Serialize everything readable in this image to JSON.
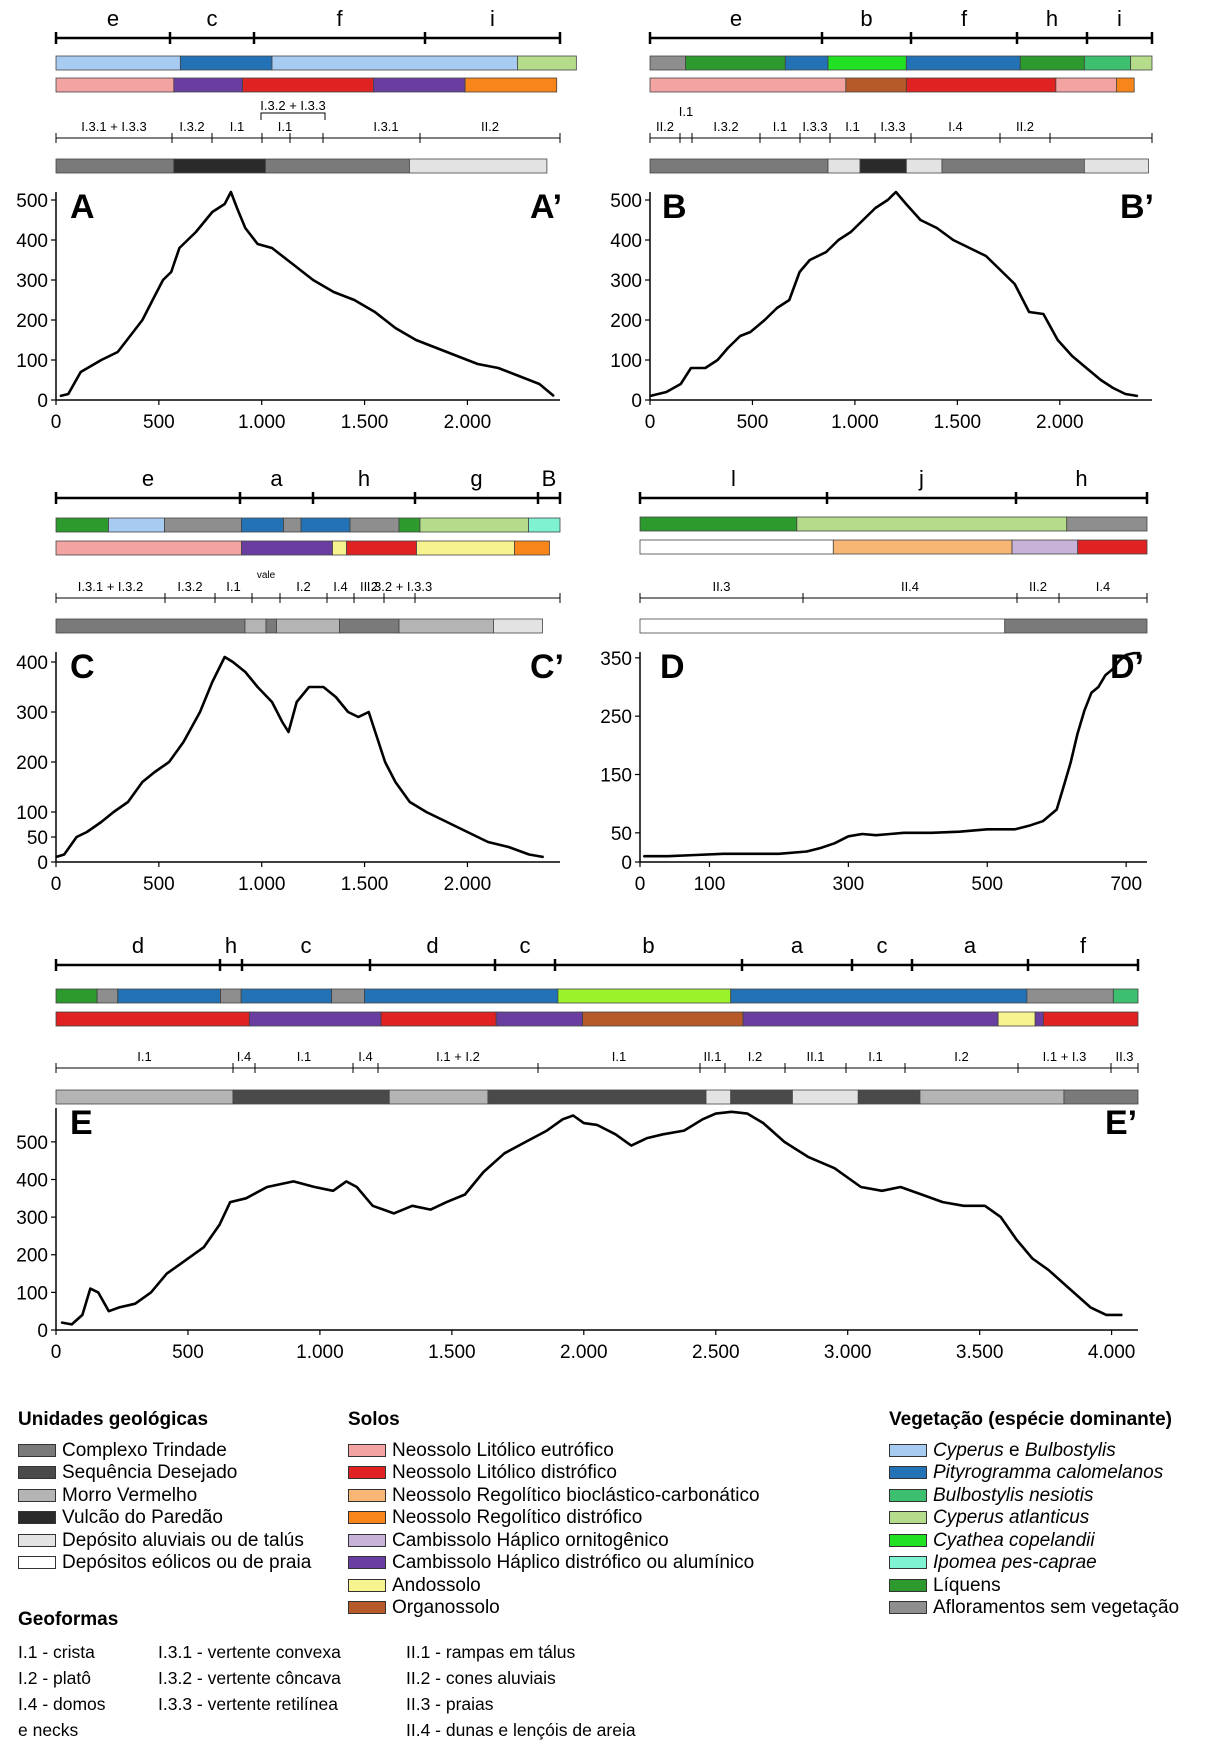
{
  "panels": [
    {
      "id": "A",
      "veg_line": [
        "e",
        "c",
        "f",
        "i"
      ],
      "geoform_labels": [
        "I.3.1 + I.3.3",
        "I.3.2",
        "I.1",
        "I.3.2 + I.3.3",
        "I.1",
        "I.3.1",
        "II.2"
      ],
      "profile_letter": "A",
      "profile_letter_end": "A’",
      "chart_data": {
        "type": "line",
        "x_ticks": [
          "0",
          "500",
          "1.000",
          "1.500",
          "2.000"
        ],
        "y_ticks": [
          "0",
          "100",
          "200",
          "300",
          "400",
          "500"
        ],
        "xlim": [
          0,
          2450
        ],
        "ylim": [
          0,
          520
        ],
        "x": [
          20,
          60,
          120,
          220,
          300,
          360,
          420,
          480,
          520,
          560,
          600,
          680,
          760,
          820,
          850,
          880,
          920,
          980,
          1050,
          1150,
          1250,
          1350,
          1450,
          1550,
          1650,
          1750,
          1850,
          1950,
          2050,
          2150,
          2250,
          2350,
          2420
        ],
        "y": [
          10,
          15,
          70,
          100,
          120,
          160,
          200,
          260,
          300,
          320,
          380,
          420,
          470,
          490,
          520,
          480,
          430,
          390,
          380,
          340,
          300,
          270,
          250,
          220,
          180,
          150,
          130,
          110,
          90,
          80,
          60,
          40,
          10
        ]
      }
    },
    {
      "id": "B",
      "veg_line": [
        "e",
        "b",
        "f",
        "h",
        "i"
      ],
      "geoform_labels": [
        "II.2",
        "I.1",
        "I.3.2",
        "I.1",
        "I.3.3",
        "I.1",
        "I.3.3",
        "I.4",
        "II.2"
      ],
      "profile_letter": "B",
      "profile_letter_end": "B’",
      "chart_data": {
        "type": "line",
        "x_ticks": [
          "0",
          "500",
          "1.000",
          "1.500",
          "2.000"
        ],
        "y_ticks": [
          "0",
          "100",
          "200",
          "300",
          "400",
          "500"
        ],
        "xlim": [
          0,
          2450
        ],
        "ylim": [
          0,
          520
        ],
        "x": [
          0,
          80,
          150,
          200,
          270,
          330,
          380,
          440,
          490,
          560,
          620,
          680,
          730,
          780,
          820,
          860,
          920,
          980,
          1040,
          1100,
          1160,
          1200,
          1250,
          1320,
          1400,
          1480,
          1560,
          1640,
          1720,
          1780,
          1850,
          1920,
          1990,
          2060,
          2130,
          2200,
          2260,
          2320,
          2380
        ],
        "y": [
          10,
          20,
          40,
          80,
          80,
          100,
          130,
          160,
          170,
          200,
          230,
          250,
          320,
          350,
          360,
          370,
          400,
          420,
          450,
          480,
          500,
          520,
          490,
          450,
          430,
          400,
          380,
          360,
          320,
          290,
          220,
          215,
          150,
          110,
          80,
          50,
          30,
          15,
          10
        ]
      }
    },
    {
      "id": "C",
      "veg_line": [
        "e",
        "a",
        "h",
        "g",
        "B"
      ],
      "geoform_labels": [
        "I.3.1 + I.3.2",
        "I.3.2",
        "I.1",
        "vale",
        "I.2",
        "I.4",
        "II.2",
        "I.3.2 + I.3.3"
      ],
      "profile_letter": "C",
      "profile_letter_end": "C’",
      "chart_data": {
        "type": "line",
        "x_ticks": [
          "0",
          "500",
          "1.000",
          "1.500",
          "2.000"
        ],
        "y_ticks": [
          "0",
          "50",
          "100",
          "200",
          "300",
          "400"
        ],
        "xlim": [
          0,
          2450
        ],
        "ylim": [
          0,
          420
        ],
        "x": [
          0,
          40,
          100,
          150,
          220,
          280,
          350,
          420,
          480,
          550,
          620,
          700,
          760,
          820,
          860,
          920,
          980,
          1050,
          1100,
          1130,
          1170,
          1230,
          1300,
          1360,
          1420,
          1470,
          1520,
          1560,
          1600,
          1650,
          1720,
          1800,
          1900,
          2000,
          2100,
          2200,
          2300,
          2370
        ],
        "y": [
          10,
          15,
          50,
          60,
          80,
          100,
          120,
          160,
          180,
          200,
          240,
          300,
          360,
          410,
          400,
          380,
          350,
          320,
          280,
          260,
          320,
          350,
          350,
          330,
          300,
          290,
          300,
          250,
          200,
          160,
          120,
          100,
          80,
          60,
          40,
          30,
          15,
          10
        ]
      }
    },
    {
      "id": "D",
      "veg_line": [
        "l",
        "j",
        "h"
      ],
      "geoform_labels": [
        "II.3",
        "II.4",
        "II.2",
        "I.4"
      ],
      "profile_letter": "D",
      "profile_letter_end": "D’",
      "chart_data": {
        "type": "line",
        "x_ticks": [
          "0",
          "100",
          "300",
          "500",
          "700"
        ],
        "y_ticks": [
          "0",
          "50",
          "150",
          "250",
          "350"
        ],
        "xlim": [
          0,
          730
        ],
        "ylim": [
          0,
          360
        ],
        "x": [
          5,
          40,
          80,
          120,
          160,
          200,
          240,
          260,
          280,
          300,
          320,
          340,
          360,
          380,
          420,
          460,
          500,
          540,
          560,
          580,
          600,
          610,
          620,
          630,
          640,
          650,
          660,
          670,
          680,
          690,
          700,
          710,
          720
        ],
        "y": [
          10,
          10,
          12,
          14,
          14,
          14,
          18,
          24,
          32,
          44,
          48,
          46,
          48,
          50,
          50,
          52,
          56,
          56,
          62,
          70,
          90,
          130,
          170,
          220,
          260,
          290,
          300,
          320,
          330,
          345,
          355,
          358,
          358
        ]
      }
    },
    {
      "id": "E",
      "veg_line": [
        "d",
        "h",
        "c",
        "d",
        "c",
        "b",
        "a",
        "c",
        "a",
        "f"
      ],
      "geoform_labels": [
        "I.1",
        "I.4",
        "I.1",
        "I.4",
        "I.1 + I.2",
        "I.1",
        "II.1",
        "I.2",
        "II.1",
        "I.1",
        "I.2",
        "I.1 + I.3",
        "II.3"
      ],
      "profile_letter": "E",
      "profile_letter_end": "E’",
      "chart_data": {
        "type": "line",
        "x_ticks": [
          "0",
          "500",
          "1.000",
          "1.500",
          "2.000",
          "2.500",
          "3.000",
          "3.500",
          "4.000"
        ],
        "y_ticks": [
          "0",
          "100",
          "200",
          "300",
          "400",
          "500"
        ],
        "xlim": [
          0,
          4100
        ],
        "ylim": [
          0,
          590
        ],
        "x": [
          20,
          60,
          100,
          130,
          160,
          200,
          240,
          300,
          360,
          420,
          480,
          560,
          620,
          660,
          720,
          800,
          900,
          980,
          1050,
          1100,
          1140,
          1200,
          1280,
          1350,
          1420,
          1480,
          1550,
          1620,
          1700,
          1780,
          1860,
          1920,
          1960,
          2000,
          2050,
          2120,
          2180,
          2240,
          2300,
          2380,
          2450,
          2500,
          2560,
          2620,
          2680,
          2760,
          2850,
          2950,
          3050,
          3130,
          3200,
          3280,
          3360,
          3440,
          3520,
          3580,
          3640,
          3700,
          3760,
          3840,
          3920,
          3980,
          4040
        ],
        "y": [
          20,
          15,
          40,
          110,
          100,
          50,
          60,
          70,
          100,
          150,
          180,
          220,
          280,
          340,
          350,
          380,
          395,
          380,
          370,
          395,
          380,
          330,
          310,
          330,
          320,
          340,
          360,
          420,
          470,
          500,
          530,
          560,
          570,
          550,
          545,
          520,
          490,
          510,
          520,
          530,
          560,
          575,
          580,
          575,
          550,
          500,
          460,
          430,
          380,
          370,
          380,
          360,
          340,
          330,
          330,
          300,
          240,
          190,
          160,
          110,
          60,
          40,
          40
        ]
      }
    }
  ],
  "legend_geol": {
    "title": "Unidades geológicas",
    "items": [
      {
        "label": "Complexo Trindade",
        "color": "#7a7a7a"
      },
      {
        "label": "Sequência Desejado",
        "color": "#4a4a4a"
      },
      {
        "label": "Morro Vermelho",
        "color": "#b4b4b4"
      },
      {
        "label": "Vulcão do Paredão",
        "color": "#2a2a2a"
      },
      {
        "label": "Depósito aluviais ou de talús",
        "color": "#e3e3e3"
      },
      {
        "label": "Depósitos eólicos ou de praia",
        "color": "#ffffff"
      }
    ]
  },
  "legend_solos": {
    "title": "Solos",
    "items": [
      {
        "label": "Neossolo Litólico eutrófico",
        "color": "#f4a3a3"
      },
      {
        "label": "Neossolo Litólico distrófico",
        "color": "#e02222"
      },
      {
        "label": "Neossolo Regolítico bioclástico-carbonático",
        "color": "#f8b675"
      },
      {
        "label": "Neossolo Regolítico distrófico",
        "color": "#f7851a"
      },
      {
        "label": "Cambissolo Háplico ornitogênico",
        "color": "#c7b2d8"
      },
      {
        "label": "Cambissolo Háplico distrófico ou alumínico",
        "color": "#6a3ea1"
      },
      {
        "label": "Andossolo",
        "color": "#f7f38e"
      },
      {
        "label": "Organossolo",
        "color": "#b55a28"
      }
    ]
  },
  "legend_veg": {
    "title": "Vegetação (espécie dominante)",
    "items": [
      {
        "pre": "Cyperus",
        "mid": " e ",
        "post": "Bulbostylis",
        "color": "#a8cbf2"
      },
      {
        "pre": "Pityrogramma calomelanos",
        "mid": "",
        "post": "",
        "color": "#2272b5"
      },
      {
        "pre": "Bulbostylis nesiotis",
        "mid": "",
        "post": "",
        "color": "#3cc070"
      },
      {
        "pre": "Cyperus atlanticus",
        "mid": "",
        "post": "",
        "color": "#b5dc8a"
      },
      {
        "pre": "Cyathea copelandii",
        "mid": "",
        "post": "",
        "color": "#22e022"
      },
      {
        "pre": "Ipomea pes-caprae",
        "mid": "",
        "post": "",
        "color": "#7ff2d2"
      },
      {
        "label": "Líquens",
        "color": "#2c9a2c"
      },
      {
        "label": "Afloramentos sem vegetação",
        "color": "#8e8e8e"
      }
    ]
  },
  "geoformas": {
    "title": "Geoformas",
    "col1": [
      "I.1 - crista",
      "I.2 - platô",
      "I.4 - domos",
      "e necks"
    ],
    "col2": [
      "I.3.1 - vertente convexa",
      "I.3.2 - vertente côncava",
      "I.3.3 - vertente retilínea"
    ],
    "col3": [
      "II.1 - rampas em tálus",
      "II.2 - cones aluviais",
      "II.3 - praias",
      "II.4 - dunas e lençóis de areia"
    ]
  },
  "colors": {
    "veg": {
      "e": "#a8cbf2",
      "c": "#2272b5",
      "f": "#a8cbf2",
      "i": "#b5dc8a",
      "b": "#22e022",
      "h": "#2c9a2c",
      "g": "#b5dc8a",
      "a": "#2272b5",
      "l": "#2c9a2c",
      "j": "#b5dc8a",
      "d": "#2272b5",
      "gray": "#8e8e8e",
      "teal": "#3cc070",
      "aqua": "#7ff2d2",
      "lime": "#9cf22a",
      "lb": "#a8cbf2"
    },
    "soil": {
      "ne": "#f4a3a3",
      "nd": "#e02222",
      "nr": "#f8b675",
      "no": "#f7851a",
      "ch": "#c7b2d8",
      "cd": "#6a3ea1",
      "an": "#f7f38e",
      "or": "#b55a28",
      "wh": "#ffffff"
    },
    "geol": {
      "ct": "#7a7a7a",
      "sd": "#4a4a4a",
      "mv": "#b4b4b4",
      "vp": "#2a2a2a",
      "da": "#e3e3e3",
      "de": "#ffffff"
    }
  }
}
